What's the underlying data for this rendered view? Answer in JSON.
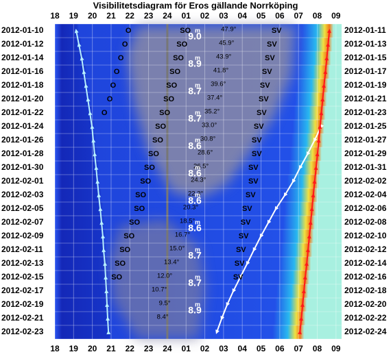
{
  "chart_data": {
    "type": "visibility",
    "title": "Visibilitetsdiagram för Eros gällande Norrköping",
    "xlim": [
      18,
      33.3
    ],
    "xticks": [
      18,
      19,
      20,
      21,
      22,
      23,
      24,
      {
        "value": 25,
        "label": "01"
      },
      {
        "value": 26,
        "label": "02"
      },
      {
        "value": 27,
        "label": "03"
      },
      {
        "value": 28,
        "label": "04"
      },
      {
        "value": 29,
        "label": "05"
      },
      {
        "value": 30,
        "label": "06"
      },
      {
        "value": 31,
        "label": "07"
      },
      {
        "value": 32,
        "label": "08"
      },
      {
        "value": 33,
        "label": "09"
      }
    ],
    "dates_left": [
      "2012-01-10",
      "2012-01-12",
      "2012-01-14",
      "2012-01-16",
      "2012-01-18",
      "2012-01-20",
      "2012-01-22",
      "2012-01-24",
      "2012-01-26",
      "2012-01-28",
      "2012-01-30",
      "2012-02-01",
      "2012-02-03",
      "2012-02-05",
      "2012-02-07",
      "2012-02-09",
      "2012-02-11",
      "2012-02-13",
      "2012-02-15",
      "2012-02-17",
      "2012-02-19",
      "2012-02-21",
      "2012-02-23"
    ],
    "dates_right": [
      "2012-01-11",
      "2012-01-13",
      "2012-01-15",
      "2012-01-17",
      "2012-01-19",
      "2012-01-21",
      "2012-01-23",
      "2012-01-25",
      "2012-01-27",
      "2012-01-29",
      "2012-01-31",
      "2012-02-02",
      "2012-02-04",
      "2012-02-06",
      "2012-02-08",
      "2012-02-10",
      "2012-02-12",
      "2012-02-14",
      "2012-02-16",
      "2012-02-18",
      "2012-02-20",
      "2012-02-22",
      "2012-02-24"
    ],
    "evening_line": {
      "color": "#b8f0ff",
      "values": [
        19.14,
        19.28,
        19.43,
        19.54,
        19.65,
        19.76,
        19.87,
        19.98,
        20.05,
        20.12,
        20.2,
        20.27,
        20.34,
        20.42,
        20.49,
        20.56,
        20.6,
        20.67,
        20.71,
        20.75,
        20.78,
        20.82,
        20.86
      ]
    },
    "morning_line": {
      "color": "#ffffff",
      "values": [
        null,
        null,
        null,
        null,
        null,
        null,
        null,
        32.21,
        31.85,
        31.48,
        31.08,
        30.71,
        30.27,
        29.79,
        29.39,
        28.99,
        28.62,
        28.26,
        27.89,
        27.52,
        27.19,
        26.9,
        26.64
      ]
    },
    "dawn_line": {
      "color": "#ff1a1a",
      "values": [
        32.65,
        32.58,
        32.51,
        32.44,
        32.36,
        32.29,
        32.22,
        32.15,
        32.08,
        32.01,
        31.94,
        31.86,
        31.79,
        31.72,
        31.65,
        31.58,
        31.51,
        31.44,
        31.36,
        31.29,
        31.22,
        31.15,
        31.08
      ]
    },
    "direction_labels": [
      {
        "label": "O",
        "times": [
          21.92,
          21.74,
          21.52,
          21.3,
          21.11,
          20.93,
          20.64,
          null,
          null,
          null,
          null,
          null,
          null,
          null,
          null,
          null,
          null,
          null,
          null,
          null,
          null,
          null,
          null
        ]
      },
      {
        "label": "SO",
        "times": [
          24.96,
          24.78,
          24.59,
          24.41,
          24.23,
          24.08,
          23.86,
          23.64,
          23.49,
          23.27,
          23.05,
          22.84,
          22.58,
          22.51,
          22.25,
          21.96,
          21.74,
          21.48,
          21.3,
          null,
          null,
          null,
          null
        ]
      },
      {
        "label": "SV",
        "times": [
          29.83,
          29.58,
          29.47,
          29.32,
          29.21,
          29.14,
          29.03,
          28.88,
          28.77,
          28.77,
          28.59,
          28.59,
          28.44,
          28.26,
          28.18,
          28.07,
          27.93,
          27.85,
          27.78,
          null,
          null,
          null,
          null
        ]
      }
    ],
    "altitudes": [
      47.9,
      45.9,
      43.9,
      41.8,
      39.6,
      37.4,
      35.2,
      33.0,
      30.8,
      28.6,
      26.5,
      24.3,
      22.3,
      20.3,
      18.5,
      16.7,
      15.0,
      13.4,
      12.0,
      10.7,
      9.5,
      8.4,
      null
    ],
    "altitude_labels": [
      "47.9°",
      "45.9°",
      "43.9°",
      "41.8°",
      "39.6°",
      "37.4°",
      "35.2°",
      "33.0°",
      "30.8°",
      "28.6°",
      "26.5°",
      "24.3°",
      "22.3°",
      "20.3°",
      "18.5°",
      "16.7°",
      "15.0°",
      "13.4°",
      "12.0°",
      "10.7°",
      "9.5°",
      "8.4°",
      null
    ],
    "altitude_times": [
      27.27,
      27.16,
      27.01,
      26.86,
      26.72,
      26.53,
      26.39,
      26.24,
      26.17,
      26.02,
      25.8,
      25.66,
      25.51,
      25.25,
      25.07,
      24.81,
      24.52,
      24.23,
      23.86,
      23.57,
      23.86,
      23.75,
      null
    ],
    "magnitude_unit": "m",
    "magnitudes": [
      9.0,
      null,
      8.9,
      null,
      8.7,
      null,
      8.7,
      null,
      8.6,
      null,
      8.6,
      null,
      8.6,
      null,
      8.6,
      null,
      8.7,
      null,
      8.7,
      null,
      8.9,
      null,
      null
    ],
    "magnitude_labels": [
      "9.0",
      null,
      "8.9",
      null,
      "8.7",
      null,
      "8.7",
      null,
      "8.6",
      null,
      "8.6",
      null,
      "8.6",
      null,
      "8.6",
      null,
      "8.7",
      null,
      "8.7",
      null,
      "8.9",
      null,
      null
    ]
  }
}
